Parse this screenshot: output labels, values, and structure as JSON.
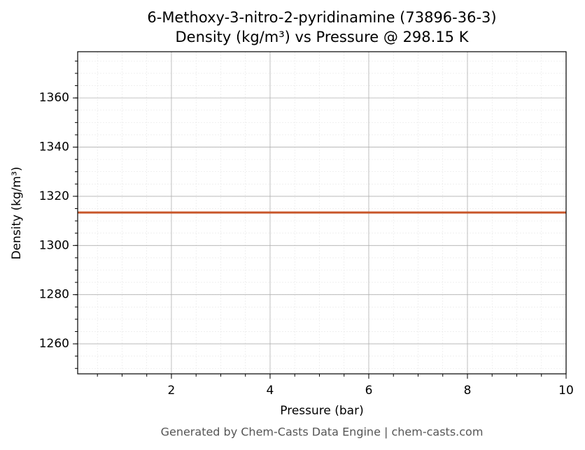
{
  "chart_data": {
    "type": "line",
    "title": "6-Methoxy-3-nitro-2-pyridinamine (73896-36-3)",
    "subtitle": "Density (kg/m³) vs Pressure @ 298.15 K",
    "x_label": "Pressure (bar)",
    "y_label": "Density (kg/m³)",
    "footer": "Generated by Chem-Casts Data Engine | chem-casts.com",
    "x": [
      0.1,
      10
    ],
    "series": [
      {
        "name": "Density",
        "color": "#c8562a",
        "values": [
          1313.4,
          1313.4
        ]
      }
    ],
    "xlim": [
      0.1,
      10
    ],
    "xticks": [
      2,
      4,
      6,
      8,
      10
    ],
    "ylim": [
      1247.8,
      1378.8
    ],
    "yticks": [
      1260,
      1280,
      1300,
      1320,
      1340,
      1360
    ],
    "grid": true,
    "minor_grid": true
  }
}
